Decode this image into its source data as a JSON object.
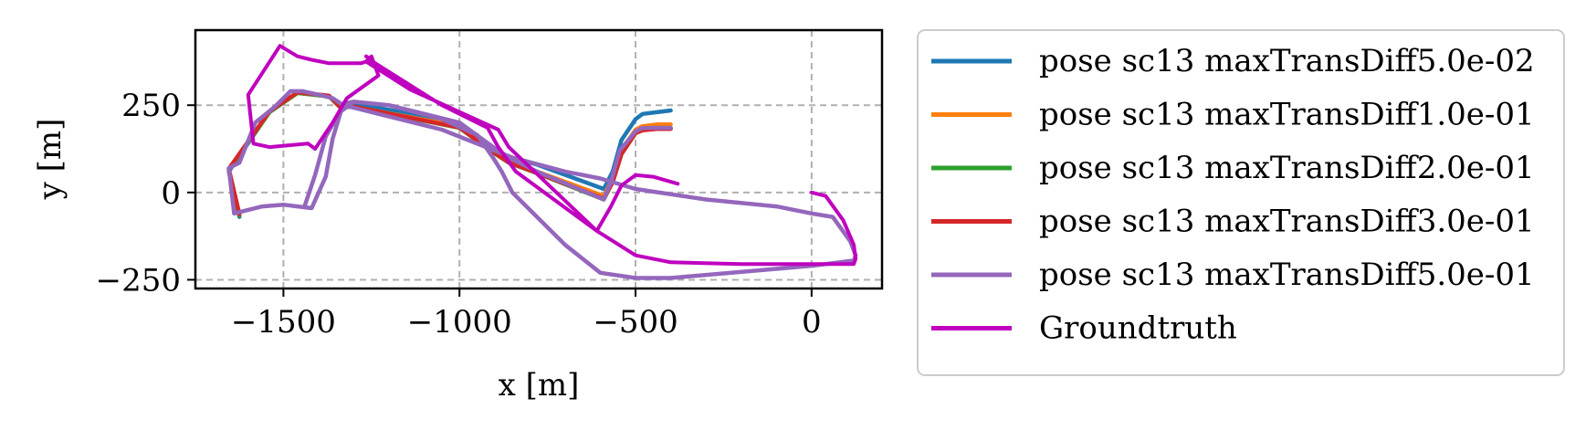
{
  "chart_data": {
    "type": "line",
    "title": "",
    "xlabel": "x [m]",
    "ylabel": "y [m]",
    "xlim": [
      -1750,
      200
    ],
    "ylim": [
      -275,
      465
    ],
    "xticks": [
      -1500,
      -1000,
      -500,
      0
    ],
    "xtick_labels": [
      "−1500",
      "−1000",
      "−500",
      "0"
    ],
    "yticks": [
      -250,
      0,
      250
    ],
    "ytick_labels": [
      "−250",
      "0",
      "250"
    ],
    "grid": true,
    "legend_position": "outside-right",
    "series": [
      {
        "name": "pose sc13 maxTransDiff5.0e-02",
        "color": "#1f77b4",
        "x": [
          -1625,
          -1655,
          -1540,
          -1460,
          -1370,
          -1340,
          -1300,
          -1000,
          -905,
          -860,
          -780,
          -590,
          -565,
          -540,
          -500,
          -480,
          -440,
          -400
        ],
        "y": [
          -70,
          60,
          230,
          285,
          275,
          250,
          255,
          200,
          130,
          100,
          80,
          10,
          60,
          150,
          210,
          225,
          230,
          235
        ]
      },
      {
        "name": "pose sc13 maxTransDiff1.0e-01",
        "color": "#ff7f0e",
        "x": [
          -1625,
          -1655,
          -1540,
          -1460,
          -1370,
          -1340,
          -1300,
          -1000,
          -905,
          -860,
          -780,
          -590,
          -565,
          -540,
          -500,
          -480,
          -440,
          -400
        ],
        "y": [
          -65,
          65,
          230,
          285,
          275,
          245,
          245,
          190,
          120,
          90,
          60,
          -10,
          40,
          120,
          180,
          190,
          195,
          195
        ]
      },
      {
        "name": "pose sc13 maxTransDiff2.0e-01",
        "color": "#2ca02c",
        "x": [
          -1625,
          -1655,
          -1540,
          -1460,
          -1370,
          -1340,
          -1300,
          -1000,
          -905,
          -860,
          -780,
          -590,
          -565,
          -540,
          -500,
          -480,
          -440,
          -400
        ],
        "y": [
          -65,
          65,
          230,
          285,
          275,
          245,
          245,
          185,
          115,
          85,
          55,
          -20,
          30,
          110,
          170,
          180,
          185,
          185
        ]
      },
      {
        "name": "pose sc13 maxTransDiff3.0e-01",
        "color": "#d62728",
        "x": [
          -1625,
          -1655,
          -1540,
          -1460,
          -1370,
          -1340,
          -1300,
          -1000,
          -905,
          -860,
          -780,
          -590,
          -565,
          -540,
          -500,
          -480,
          -440,
          -400
        ],
        "y": [
          -62,
          68,
          232,
          287,
          277,
          246,
          246,
          186,
          116,
          86,
          56,
          -18,
          30,
          110,
          170,
          178,
          182,
          182
        ]
      },
      {
        "name": "pose sc13 maxTransDiff5.0e-01",
        "color": "#9467bd",
        "x": [
          -1440,
          -1410,
          -1380,
          -1340,
          -1300,
          -1200,
          -1050,
          -950,
          -905,
          -880,
          -850,
          -700,
          -600,
          -500,
          -400,
          0,
          120,
          125,
          110,
          60,
          0,
          -100,
          -300,
          -500,
          -600,
          -700,
          -850,
          -900,
          -950,
          -1050,
          -1290,
          -1330,
          -1360,
          -1400,
          -1445,
          -1480,
          -1525,
          -1580,
          -1625,
          -1655,
          -1640,
          -1560,
          -1500,
          -1460,
          -1420,
          -1380,
          -1360,
          -1330,
          -1300,
          -1200,
          -1000,
          -905,
          -860,
          -780,
          -590,
          -570,
          -545,
          -500,
          -480,
          -440,
          -400
        ],
        "y": [
          -40,
          50,
          160,
          230,
          260,
          250,
          210,
          165,
          100,
          60,
          0,
          -150,
          -230,
          -245,
          -245,
          -210,
          -195,
          -180,
          -140,
          -70,
          -60,
          -40,
          -20,
          10,
          40,
          60,
          100,
          120,
          140,
          180,
          240,
          250,
          270,
          280,
          290,
          290,
          245,
          200,
          85,
          70,
          -60,
          -40,
          -35,
          -40,
          -45,
          45,
          155,
          255,
          260,
          250,
          200,
          130,
          100,
          60,
          -20,
          30,
          120,
          175,
          185,
          185,
          185
        ]
      },
      {
        "name": "Groundtruth",
        "color": "#bf00bf",
        "x": [
          0,
          40,
          90,
          120,
          125,
          120,
          -200,
          -400,
          -500,
          -610,
          -840,
          -890,
          -920,
          -1050,
          -1255,
          -1265,
          -1250,
          -1280,
          -1370,
          -1420,
          -1460,
          -1510,
          -1600,
          -1585,
          -1540,
          -1430,
          -1410,
          -1360,
          -1320,
          -1230,
          -1250,
          -1255,
          -1265,
          -1250,
          -1140,
          -890,
          -860,
          -610,
          -570,
          -540,
          -500,
          -450,
          -380
        ],
        "y": [
          0,
          -10,
          -80,
          -150,
          -190,
          -205,
          -205,
          -200,
          -180,
          -110,
          60,
          130,
          185,
          250,
          380,
          390,
          380,
          370,
          370,
          380,
          390,
          420,
          280,
          140,
          130,
          140,
          125,
          200,
          270,
          335,
          390,
          385,
          375,
          365,
          295,
          180,
          130,
          -110,
          -40,
          20,
          50,
          45,
          25
        ]
      }
    ]
  }
}
